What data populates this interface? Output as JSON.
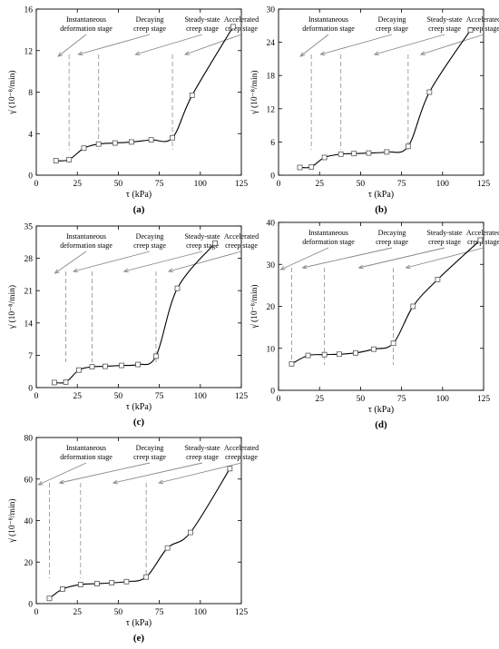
{
  "figure": {
    "ylabel": "γ̇ (10⁻⁸/min)",
    "xlabel": "τ (kPa)",
    "stage_labels": [
      [
        "Instantaneous",
        "deformation stage"
      ],
      [
        "Decaying",
        "creep stage"
      ],
      [
        "Steady-state",
        "creep stage"
      ],
      [
        "Accelerated",
        "creep stage"
      ]
    ],
    "colors": {
      "axis": "#000000",
      "curve": "#000000",
      "marker": "#555555",
      "dash": "#999999",
      "annotation": "#888888"
    }
  },
  "chart_data": [
    {
      "type": "line",
      "panel_label": "(a)",
      "xlim": [
        0,
        125
      ],
      "ylim": [
        0,
        16
      ],
      "xticks": [
        0,
        25,
        50,
        75,
        100,
        125
      ],
      "yticks": [
        0,
        4,
        8,
        12,
        16
      ],
      "xtick_labels": [
        "0",
        "25",
        "50",
        "75",
        "100",
        "125"
      ],
      "ytick_labels": [
        "0",
        "4",
        "8",
        "12",
        "16"
      ],
      "x": [
        12,
        20,
        29,
        38,
        48,
        58,
        70,
        83,
        95,
        120
      ],
      "values": [
        1.4,
        1.5,
        2.6,
        3.0,
        3.1,
        3.2,
        3.4,
        3.6,
        7.7,
        14.3
      ],
      "stage_boundaries": [
        20,
        38,
        83
      ],
      "stage_labels": [
        [
          "Instantaneous",
          "deformation stage"
        ],
        [
          "Decaying",
          "creep stage"
        ],
        [
          "Steady-state",
          "creep stage"
        ],
        [
          "Accelerated",
          "creep stage"
        ]
      ]
    },
    {
      "type": "line",
      "panel_label": "(b)",
      "xlim": [
        0,
        125
      ],
      "ylim": [
        0,
        30
      ],
      "xticks": [
        0,
        25,
        50,
        75,
        100,
        125
      ],
      "yticks": [
        0,
        6,
        12,
        18,
        24,
        30
      ],
      "xtick_labels": [
        "0",
        "25",
        "50",
        "75",
        "100",
        "125"
      ],
      "ytick_labels": [
        "0",
        "6",
        "12",
        "18",
        "24",
        "30"
      ],
      "x": [
        13,
        20,
        28,
        38,
        46,
        55,
        66,
        79,
        92,
        117
      ],
      "values": [
        1.4,
        1.5,
        3.2,
        3.8,
        3.9,
        4.0,
        4.2,
        5.2,
        15.0,
        26.2
      ],
      "stage_boundaries": [
        20,
        38,
        79
      ],
      "stage_labels": [
        [
          "Instantaneous",
          "deformation stage"
        ],
        [
          "Decaying",
          "creep stage"
        ],
        [
          "Steady-state",
          "creep stage"
        ],
        [
          "Accelerated",
          "creep stage"
        ]
      ]
    },
    {
      "type": "line",
      "panel_label": "(c)",
      "xlim": [
        0,
        125
      ],
      "ylim": [
        0,
        35
      ],
      "xticks": [
        0,
        25,
        50,
        75,
        100,
        125
      ],
      "yticks": [
        0,
        7,
        14,
        21,
        28,
        35
      ],
      "xtick_labels": [
        "0",
        "25",
        "50",
        "75",
        "100",
        "125"
      ],
      "ytick_labels": [
        "0",
        "7",
        "14",
        "21",
        "28",
        "35"
      ],
      "x": [
        11,
        18,
        26,
        34,
        42,
        52,
        62,
        73,
        86,
        109
      ],
      "values": [
        1.1,
        1.2,
        3.8,
        4.5,
        4.6,
        4.8,
        5.0,
        6.8,
        21.5,
        31.3
      ],
      "stage_boundaries": [
        18,
        34,
        73
      ],
      "stage_labels": [
        [
          "Instantaneous",
          "deformation stage"
        ],
        [
          "Decaying",
          "creep stage"
        ],
        [
          "Steady-state",
          "creep stage"
        ],
        [
          "Accelerated",
          "creep stage"
        ]
      ]
    },
    {
      "type": "line",
      "panel_label": "(d)",
      "xlim": [
        0,
        125
      ],
      "ylim": [
        0,
        40
      ],
      "xticks": [
        0,
        25,
        50,
        75,
        100,
        125
      ],
      "yticks": [
        0,
        10,
        20,
        30,
        40
      ],
      "xtick_labels": [
        "0",
        "25",
        "50",
        "75",
        "100",
        "125"
      ],
      "ytick_labels": [
        "0",
        "10",
        "20",
        "30",
        "40"
      ],
      "x": [
        8,
        18,
        28,
        37,
        47,
        58,
        70,
        82,
        97,
        123
      ],
      "values": [
        6.3,
        8.3,
        8.5,
        8.6,
        8.9,
        9.8,
        11.2,
        20.0,
        26.4,
        35.8
      ],
      "stage_boundaries": [
        8,
        28,
        70
      ],
      "stage_labels": [
        [
          "Instantaneous",
          "deformation stage"
        ],
        [
          "Decaying",
          "creep stage"
        ],
        [
          "Steady-state",
          "creep stage"
        ],
        [
          "Accelerated",
          "creep stage"
        ]
      ]
    },
    {
      "type": "line",
      "panel_label": "(e)",
      "xlim": [
        0,
        125
      ],
      "ylim": [
        0,
        80
      ],
      "xticks": [
        0,
        25,
        50,
        75,
        100,
        125
      ],
      "yticks": [
        0,
        20,
        40,
        60,
        80
      ],
      "xtick_labels": [
        "0",
        "25",
        "50",
        "75",
        "100",
        "125"
      ],
      "ytick_labels": [
        "0",
        "20",
        "40",
        "60",
        "80"
      ],
      "x": [
        8,
        16,
        27,
        37,
        46,
        55,
        67,
        80,
        94,
        118
      ],
      "values": [
        2.5,
        7.0,
        9.2,
        9.6,
        10.0,
        10.6,
        12.8,
        26.8,
        34.3,
        65.0
      ],
      "stage_boundaries": [
        8,
        27,
        67
      ],
      "stage_labels": [
        [
          "Instantaneous",
          "deformation stage"
        ],
        [
          "Decaying",
          "creep stage"
        ],
        [
          "Steady-state",
          "creep stage"
        ],
        [
          "Accelerated",
          "creep stage"
        ]
      ]
    }
  ]
}
